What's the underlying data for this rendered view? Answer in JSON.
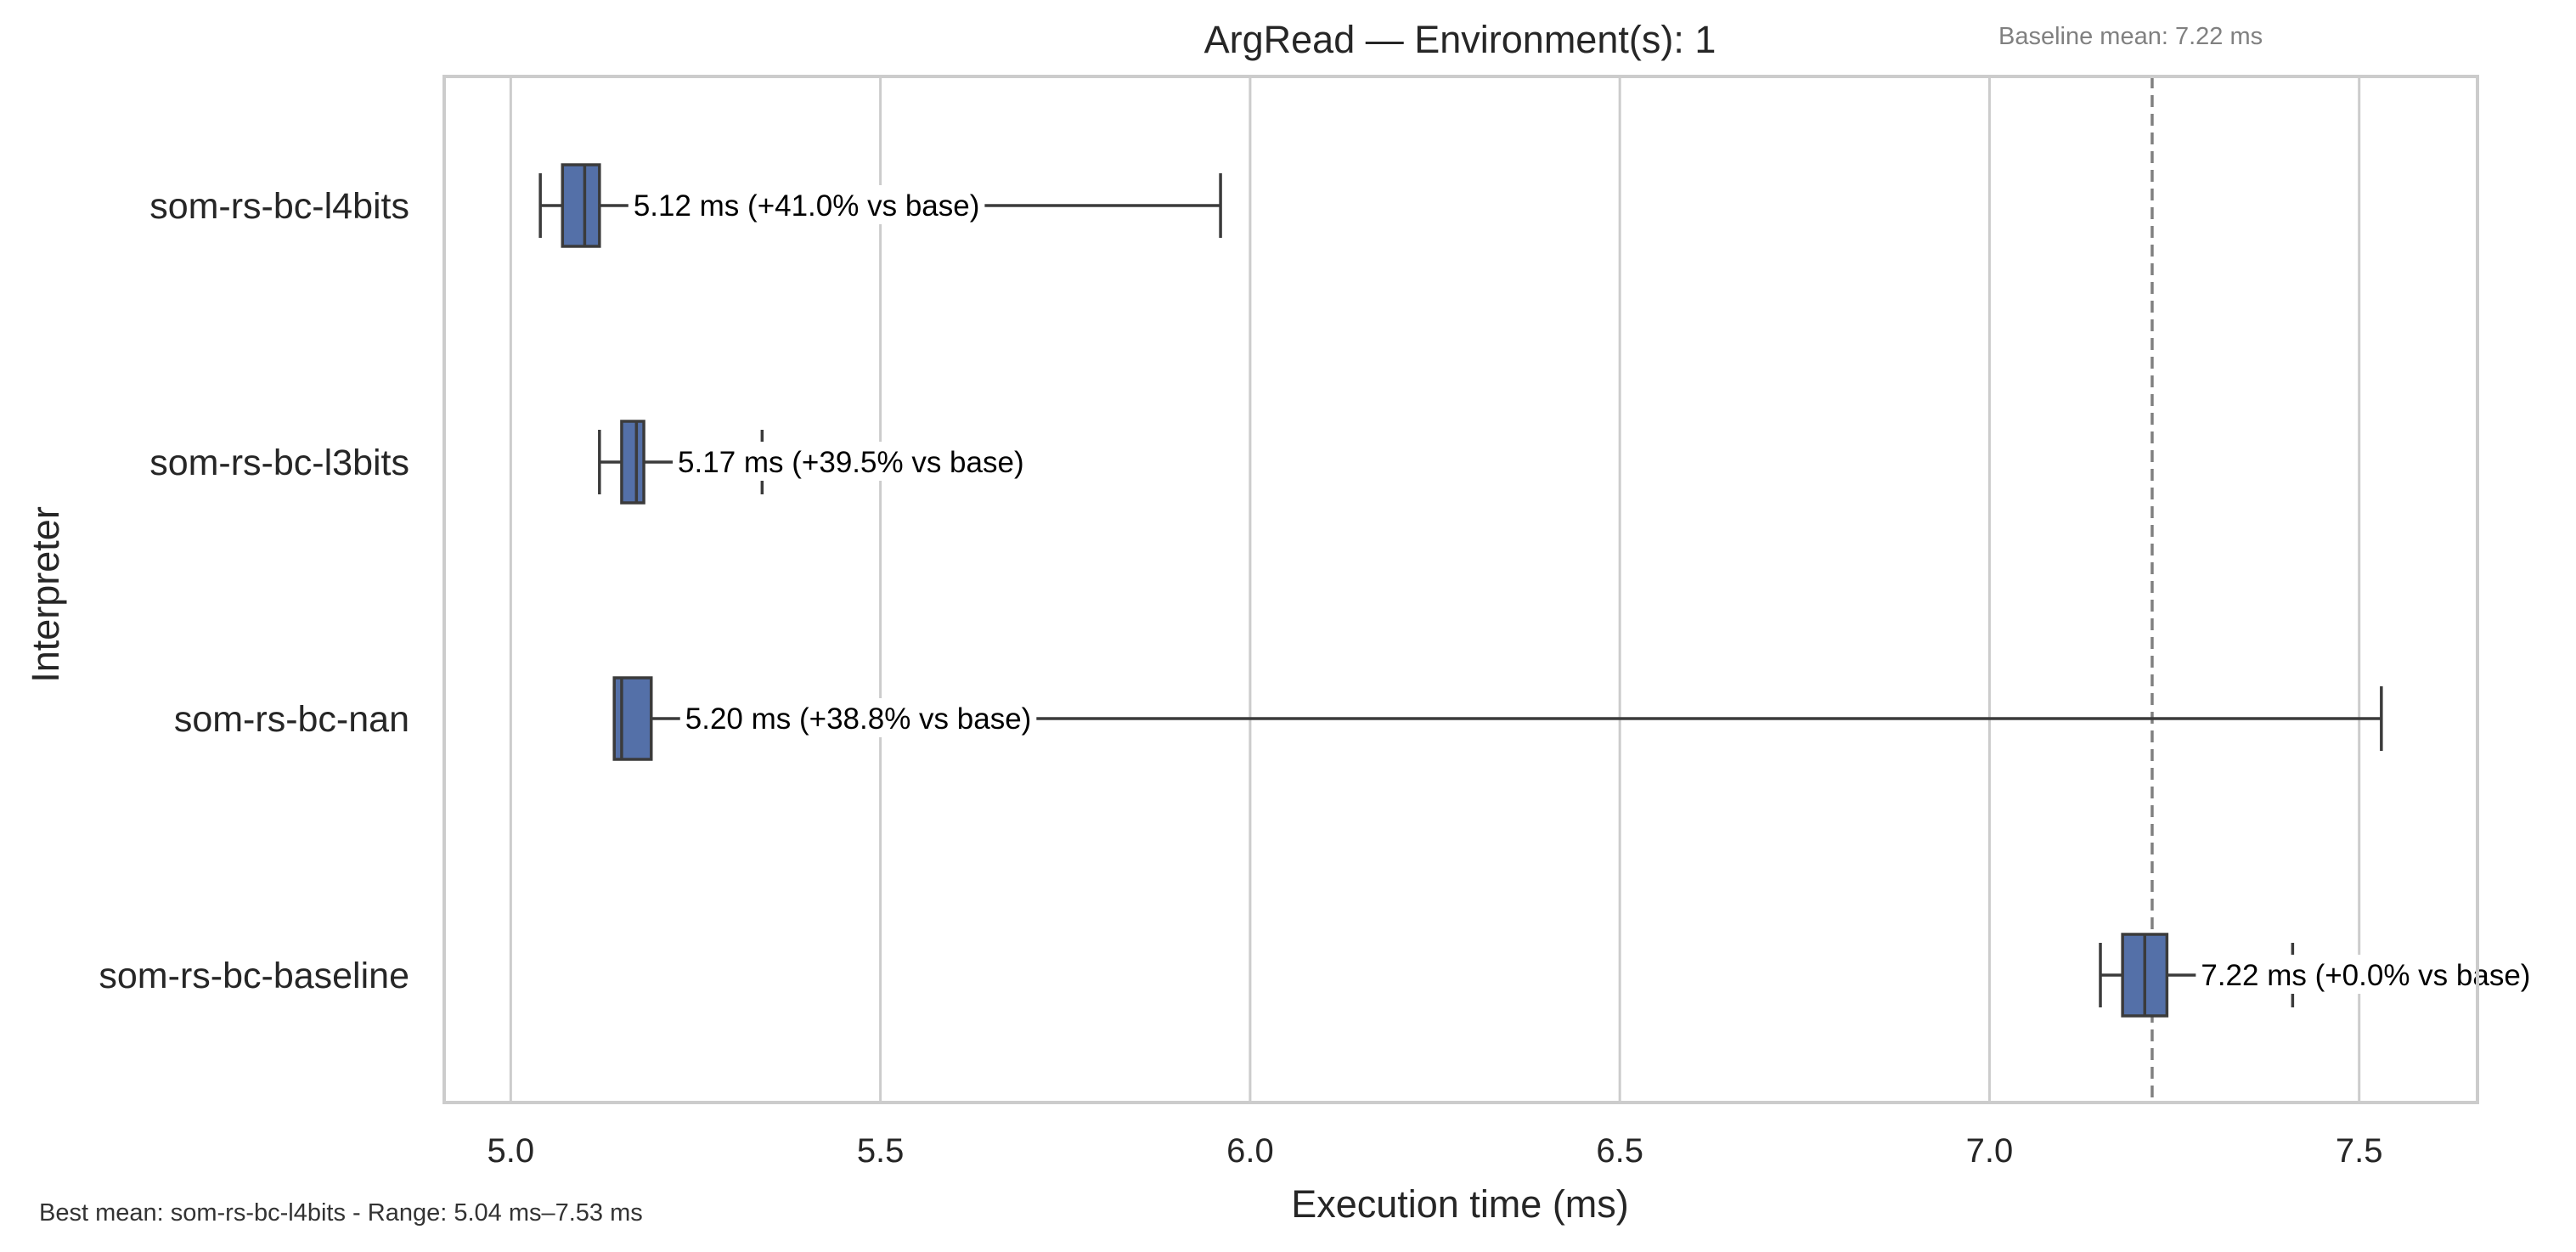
{
  "chart_data": {
    "type": "box",
    "title": "ArgRead — Environment(s): 1",
    "xlabel": "Execution time (ms)",
    "ylabel": "Interpreter",
    "xlim": [
      4.91,
      7.66
    ],
    "x_ticks": [
      "5.0",
      "5.5",
      "6.0",
      "6.5",
      "7.0",
      "7.5"
    ],
    "x_tick_values": [
      5.0,
      5.5,
      6.0,
      6.5,
      7.0,
      7.5
    ],
    "grid": "vertical",
    "categories": [
      "som-rs-bc-l4bits",
      "som-rs-bc-l3bits",
      "som-rs-bc-nan",
      "som-rs-bc-baseline"
    ],
    "boxes": [
      {
        "label": "som-rs-bc-l4bits",
        "whisker_low": 5.04,
        "q1": 5.07,
        "median": 5.1,
        "q3": 5.12,
        "whisker_high": 5.96,
        "annotation": "5.12 ms  (+41.0% vs base)"
      },
      {
        "label": "som-rs-bc-l3bits",
        "whisker_low": 5.12,
        "q1": 5.15,
        "median": 5.17,
        "q3": 5.18,
        "whisker_high": 5.34,
        "annotation": "5.17 ms  (+39.5% vs base)"
      },
      {
        "label": "som-rs-bc-nan",
        "whisker_low": 5.14,
        "q1": 5.14,
        "median": 5.15,
        "q3": 5.19,
        "whisker_high": 7.53,
        "annotation": "5.20 ms  (+38.8% vs base)"
      },
      {
        "label": "som-rs-bc-baseline",
        "whisker_low": 7.15,
        "q1": 7.18,
        "median": 7.21,
        "q3": 7.24,
        "whisker_high": 7.41,
        "annotation": "7.22 ms  (+0.0% vs base)"
      }
    ],
    "baseline_mean": 7.22,
    "baseline_label": "Baseline mean: 7.22 ms",
    "footer": "Best mean: som-rs-bc-l4bits - Range: 5.04 ms–7.53 ms",
    "colors": {
      "box": "#5470a8",
      "edge": "#3b3b3b",
      "grid": "#cccccc",
      "frame": "#cccccc",
      "baseline": "#808080"
    }
  }
}
